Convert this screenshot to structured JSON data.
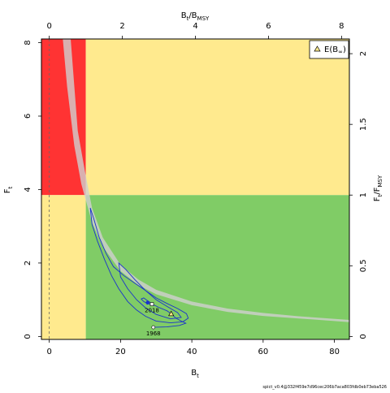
{
  "chart_data": {
    "type": "scatter",
    "title": "",
    "xlabel": {
      "main": "B",
      "sub": "t"
    },
    "ylabel": {
      "main": "F",
      "sub": "t"
    },
    "x2label": {
      "main": "B",
      "sub1": "t",
      "sep": "/B",
      "sub2": "MSY"
    },
    "y2label": {
      "main": "F",
      "sub1": "t",
      "sep": "/F",
      "sub2": "MSY"
    },
    "xlim": [
      -2.2,
      84.2
    ],
    "ylim": [
      -0.08,
      8.1
    ],
    "x_ticks": [
      0,
      20,
      40,
      60,
      80
    ],
    "x_tick_labels": [
      "0",
      "20",
      "40",
      "60",
      "80"
    ],
    "y_ticks": [
      0,
      2,
      4,
      6,
      8
    ],
    "y_tick_labels": [
      "0",
      "2",
      "4",
      "6",
      "8"
    ],
    "x2_ticks": [
      0,
      2,
      4,
      6,
      8
    ],
    "x2_tick_labels": [
      "0",
      "2",
      "4",
      "6",
      "8"
    ],
    "y2_ticks": [
      0,
      0.5,
      1,
      1.5,
      2
    ],
    "y2_tick_labels": [
      "0",
      "0.5",
      "1",
      "1.5",
      "2"
    ],
    "BMSY": 10.25,
    "FMSY": 3.85,
    "zones": [
      {
        "name": "overfished-overfishing",
        "color": "#ff3333",
        "x": [
          -2.2,
          10.25
        ],
        "y": [
          3.85,
          8.1
        ]
      },
      {
        "name": "healthy-overfishing",
        "color": "#ffea8e",
        "x": [
          10.25,
          84.2
        ],
        "y": [
          3.85,
          8.1
        ]
      },
      {
        "name": "overfished-no-overfishing",
        "color": "#ffea8e",
        "x": [
          -2.2,
          10.25
        ],
        "y": [
          -0.08,
          3.85
        ]
      },
      {
        "name": "healthy",
        "color": "#80cc66",
        "x": [
          10.25,
          84.2
        ],
        "y": [
          -0.08,
          3.85
        ]
      }
    ],
    "equilibrium_band": {
      "color": "#d0d0d0",
      "opacity": 0.8,
      "lower": [
        [
          6.0,
          8.1
        ],
        [
          8,
          5.6
        ],
        [
          10,
          4.5
        ],
        [
          12,
          3.5
        ],
        [
          15,
          2.7
        ],
        [
          20,
          1.95
        ],
        [
          25,
          1.55
        ],
        [
          30,
          1.27
        ],
        [
          40,
          0.95
        ],
        [
          50,
          0.76
        ],
        [
          60,
          0.64
        ],
        [
          70,
          0.55
        ],
        [
          84.2,
          0.45
        ]
      ],
      "upper": [
        [
          3.8,
          8.1
        ],
        [
          5,
          6.8
        ],
        [
          7,
          5.2
        ],
        [
          9,
          4.15
        ],
        [
          12,
          3.1
        ],
        [
          15,
          2.45
        ],
        [
          20,
          1.78
        ],
        [
          25,
          1.4
        ],
        [
          30,
          1.15
        ],
        [
          40,
          0.85
        ],
        [
          50,
          0.67
        ],
        [
          60,
          0.56
        ],
        [
          70,
          0.49
        ],
        [
          84.2,
          0.39
        ]
      ]
    },
    "b_infinity_line": {
      "x": 0,
      "style": "dashed",
      "color": "#666666"
    },
    "confidence_region": {
      "color": "#1a33cc",
      "outer": [
        [
          11.5,
          3.5
        ],
        [
          12.5,
          3.2
        ],
        [
          14,
          2.7
        ],
        [
          16,
          2.25
        ],
        [
          18,
          1.9
        ],
        [
          21,
          1.65
        ],
        [
          24,
          1.45
        ],
        [
          27,
          1.25
        ],
        [
          30,
          1.05
        ],
        [
          33,
          0.9
        ],
        [
          36,
          0.76
        ],
        [
          38.5,
          0.62
        ],
        [
          39,
          0.5
        ],
        [
          37.5,
          0.4
        ],
        [
          34,
          0.37
        ],
        [
          30,
          0.42
        ],
        [
          27,
          0.55
        ],
        [
          24.5,
          0.72
        ],
        [
          22,
          0.95
        ],
        [
          19.5,
          1.3
        ],
        [
          17.5,
          1.65
        ],
        [
          15.5,
          2.1
        ],
        [
          13.5,
          2.6
        ],
        [
          12,
          3.05
        ],
        [
          11.5,
          3.5
        ]
      ],
      "inner": [
        [
          19.5,
          2.0
        ],
        [
          21.5,
          1.82
        ],
        [
          24,
          1.55
        ],
        [
          27,
          1.25
        ],
        [
          30,
          1.0
        ],
        [
          33,
          0.82
        ],
        [
          36,
          0.65
        ],
        [
          37,
          0.52
        ],
        [
          34,
          0.48
        ],
        [
          30,
          0.6
        ],
        [
          27,
          0.78
        ],
        [
          24.5,
          1.0
        ],
        [
          22,
          1.3
        ],
        [
          20,
          1.62
        ],
        [
          19.5,
          2.0
        ]
      ]
    },
    "trajectory": {
      "color": "#1a33cc",
      "points": [
        [
          29.2,
          0.25
        ],
        [
          33,
          0.26
        ],
        [
          36.5,
          0.3
        ],
        [
          38.3,
          0.36
        ],
        [
          37,
          0.42
        ],
        [
          35.5,
          0.5
        ],
        [
          34.2,
          0.62
        ],
        [
          33,
          0.7
        ],
        [
          31,
          0.78
        ],
        [
          29.5,
          0.85
        ],
        [
          28.5,
          0.88
        ],
        [
          27.5,
          0.9
        ],
        [
          26.5,
          0.95
        ],
        [
          25.8,
          1.02
        ],
        [
          26.5,
          1.05
        ],
        [
          27.5,
          0.98
        ],
        [
          28.8,
          0.9
        ],
        [
          29.2,
          0.88
        ]
      ]
    },
    "points": [
      {
        "label": "1968",
        "x": 29.2,
        "y": 0.25,
        "shape": "circle",
        "color": "#ffffff"
      },
      {
        "label": "2018",
        "x": 28.8,
        "y": 0.88,
        "shape": "square",
        "color": "#ffffff"
      },
      {
        "label": "",
        "x": 27.6,
        "y": 0.92,
        "shape": "circle",
        "color": "#1a33cc"
      }
    ],
    "equilibrium_point": {
      "x": 34.2,
      "y": 0.62,
      "shape": "triangle",
      "color": "#ffea8e"
    },
    "legend": {
      "placement": "top-right",
      "entries": [
        {
          "label": "E(B",
          "sub": "∞",
          "close": ")",
          "shape": "triangle"
        }
      ]
    }
  },
  "footer": {
    "version": "spict_v0.4@332f459e7d96cec206b7aca803fdb0eb73eba526"
  }
}
